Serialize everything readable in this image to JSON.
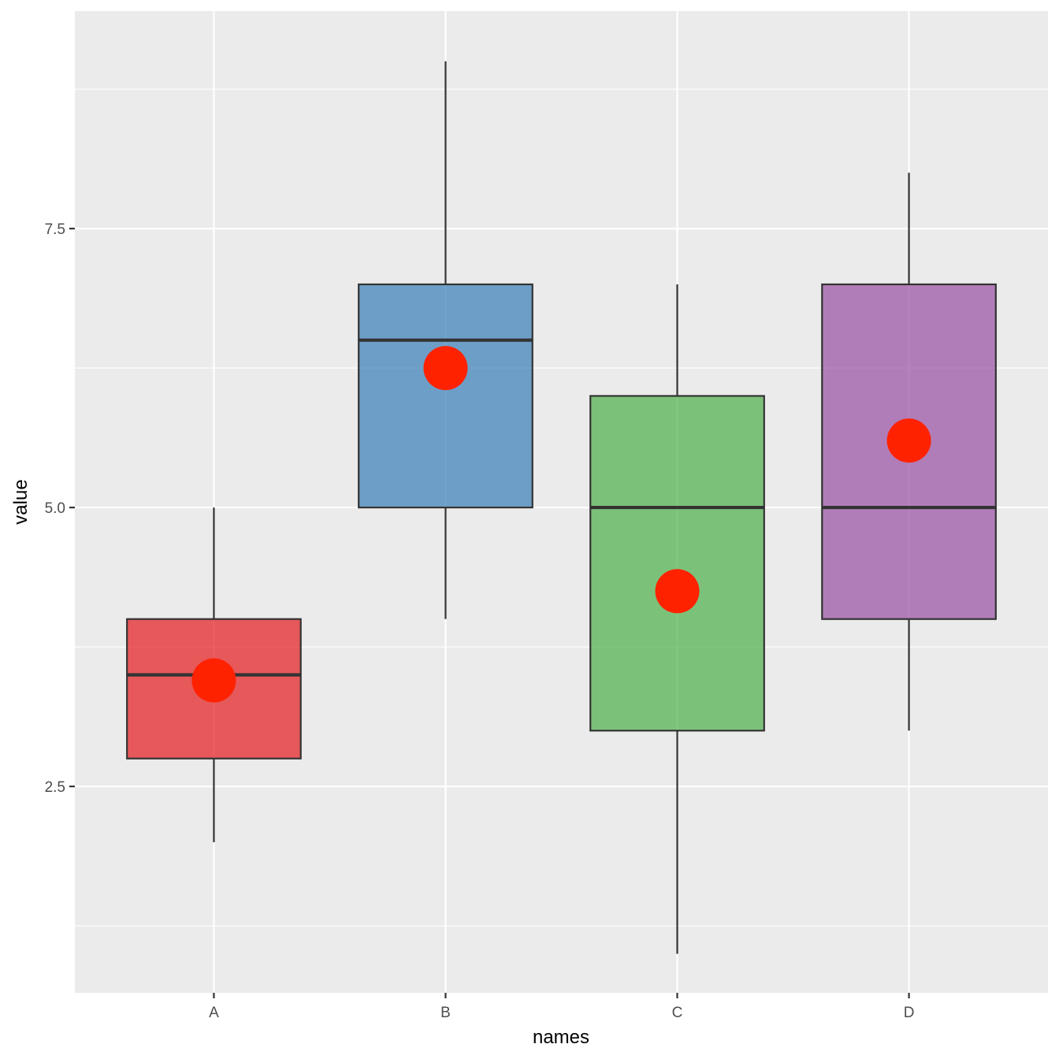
{
  "chart_data": {
    "type": "boxplot",
    "xlabel": "names",
    "ylabel": "value",
    "categories": [
      "A",
      "B",
      "C",
      "D"
    ],
    "ylim": [
      0.65,
      9.45
    ],
    "y_ticks": [
      2.5,
      5.0,
      7.5
    ],
    "y_tick_labels": [
      "2.5",
      "5.0",
      "7.5"
    ],
    "grid": true,
    "legend": "none",
    "boxes": [
      {
        "name": "A",
        "whisker_low": 2.0,
        "q1": 2.75,
        "median": 3.5,
        "q3": 4.0,
        "whisker_high": 5.0,
        "mean": 3.45,
        "fill": "#E41A1C"
      },
      {
        "name": "B",
        "whisker_low": 4.0,
        "q1": 5.0,
        "median": 6.5,
        "q3": 7.0,
        "whisker_high": 9.0,
        "mean": 6.25,
        "fill": "#377EB8"
      },
      {
        "name": "C",
        "whisker_low": 1.0,
        "q1": 3.0,
        "median": 5.0,
        "q3": 6.0,
        "whisker_high": 7.0,
        "mean": 4.25,
        "fill": "#4DAF4A"
      },
      {
        "name": "D",
        "whisker_low": 3.0,
        "q1": 4.0,
        "median": 5.0,
        "q3": 7.0,
        "whisker_high": 8.0,
        "mean": 5.6,
        "fill": "#984EA3"
      }
    ],
    "mean_point_color": "#FF2200",
    "panel_background": "#EBEBEB",
    "grid_color": "#FFFFFF"
  }
}
